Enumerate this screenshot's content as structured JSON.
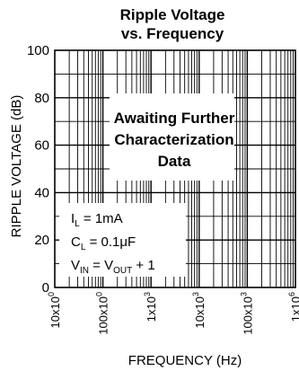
{
  "chart_data": {
    "type": "line",
    "title_line1": "Ripple Voltage",
    "title_line2": "vs. Frequency",
    "xlabel": "FREQUENCY (Hz)",
    "ylabel": "RIPPLE VOLTAGE (dB)",
    "x_scale": "log",
    "xlim": [
      10,
      1000000
    ],
    "ylim": [
      0,
      100
    ],
    "y_ticks": [
      0,
      20,
      40,
      60,
      80,
      100
    ],
    "x_ticks": [
      {
        "value": 10,
        "base": "10x10",
        "exp": "0"
      },
      {
        "value": 100,
        "base": "100x10",
        "exp": "0"
      },
      {
        "value": 1000,
        "base": "1x10",
        "exp": "3"
      },
      {
        "value": 10000,
        "base": "10x10",
        "exp": "3"
      },
      {
        "value": 100000,
        "base": "100x10",
        "exp": "3"
      },
      {
        "value": 1000000,
        "base": "1x10",
        "exp": "6"
      }
    ],
    "grid": true,
    "series": [],
    "annotation": {
      "lines": [
        "Awaiting Further",
        "Characterization",
        "Data"
      ]
    },
    "conditions": [
      {
        "main": "I",
        "sub": "L",
        "rest": " = 1mA"
      },
      {
        "main": "C",
        "sub": "L",
        "rest": " = 0.1μF"
      },
      {
        "main": "V",
        "sub": "IN",
        "mid": " = V",
        "sub2": "OUT",
        "rest": " + 1"
      }
    ]
  }
}
